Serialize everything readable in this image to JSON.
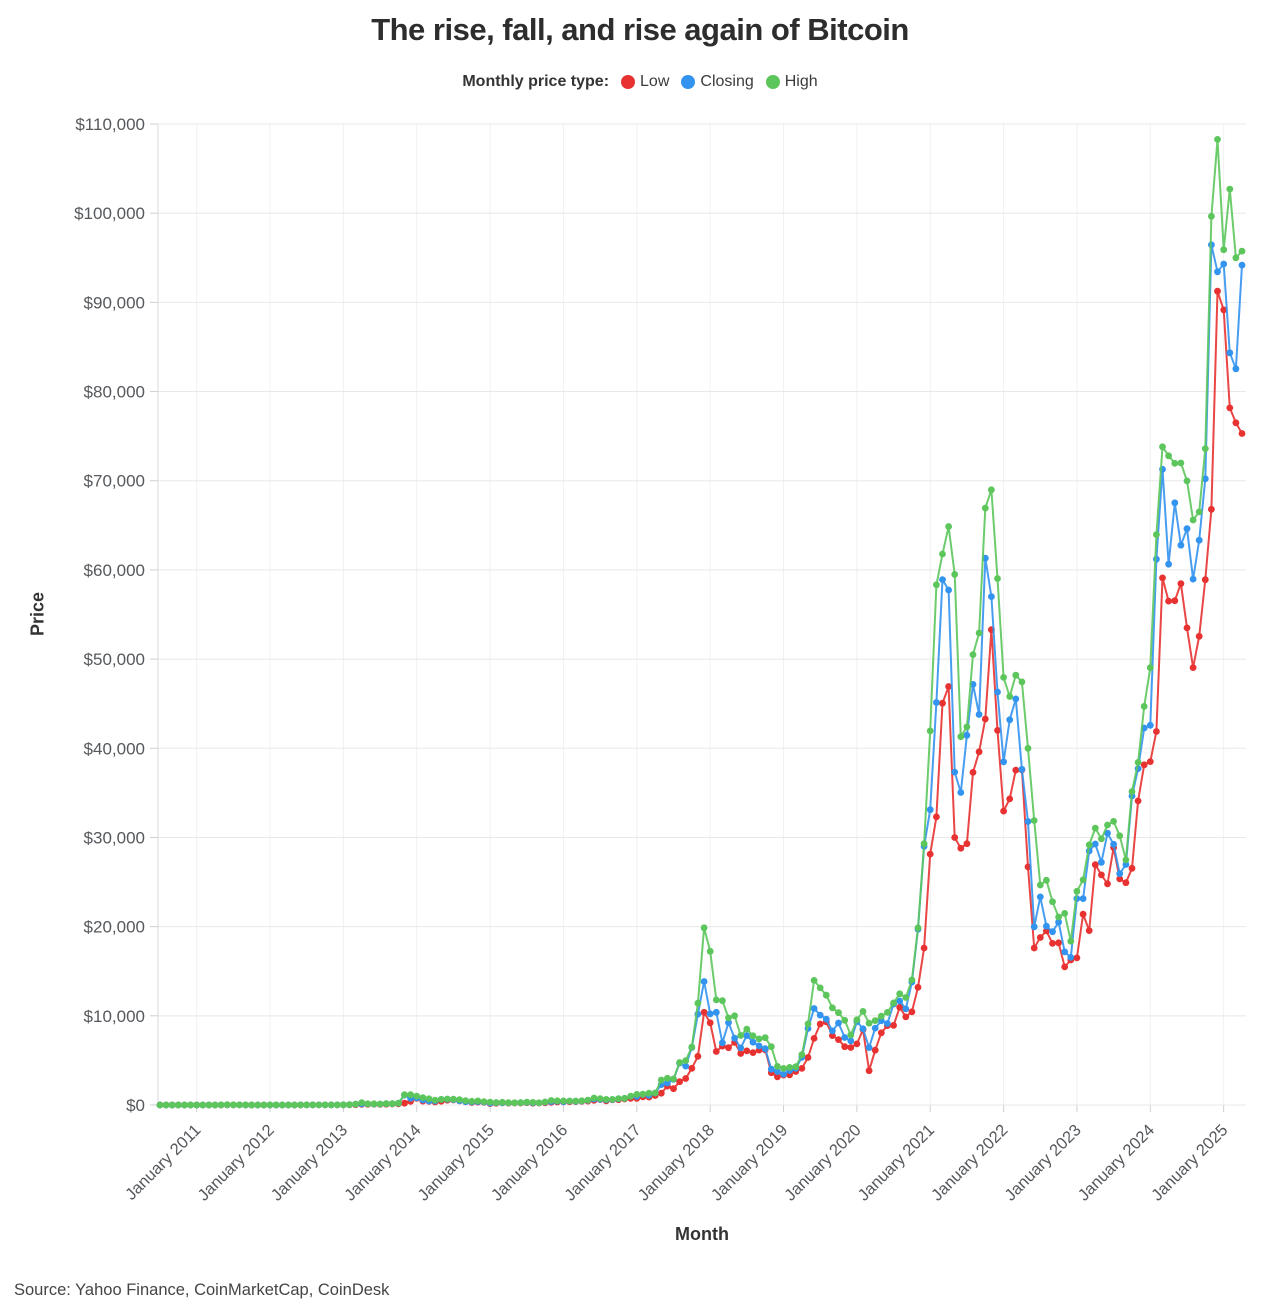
{
  "title": "The rise, fall, and rise again of Bitcoin",
  "legend": {
    "label": "Monthly price type:",
    "items": [
      {
        "name": "Low",
        "color": "#e73231"
      },
      {
        "name": "Closing",
        "color": "#3394ef"
      },
      {
        "name": "High",
        "color": "#5cc65c"
      }
    ]
  },
  "source": "Source: Yahoo Finance, CoinMarketCap, CoinDesk",
  "chart_data": {
    "type": "line",
    "title": "The rise, fall, and rise again of Bitcoin",
    "xlabel": "Month",
    "ylabel": "Price",
    "x_start": "2010-07",
    "x_end": "2025-04",
    "x_tick_month_offset": 6,
    "x_tick_labels": [
      "January 2011",
      "January 2012",
      "January 2013",
      "January 2014",
      "January 2015",
      "January 2016",
      "January 2017",
      "January 2018",
      "January 2019",
      "January 2020",
      "January 2021",
      "January 2022",
      "January 2023",
      "January 2024",
      "January 2025"
    ],
    "y_ticks": [
      "$0",
      "$10,000",
      "$20,000",
      "$30,000",
      "$40,000",
      "$50,000",
      "$60,000",
      "$70,000",
      "$80,000",
      "$90,000",
      "$100,000",
      "$110,000"
    ],
    "ylim": [
      0,
      110000
    ],
    "grid": true,
    "legend_position": "top",
    "series": [
      {
        "name": "Low",
        "color": "#e73231",
        "values": [
          0.05,
          0.05,
          0.06,
          0.06,
          0.14,
          0.21,
          0.29,
          0.45,
          0.7,
          0.75,
          3.4,
          9,
          12.8,
          7.6,
          4.8,
          2.3,
          1.9,
          3,
          4,
          4.2,
          4.5,
          4.7,
          4.9,
          5.2,
          6.5,
          7.5,
          9.8,
          10.2,
          10.3,
          12.4,
          13.2,
          20,
          33,
          68,
          79,
          88,
          65,
          92,
          114,
          123,
          198,
          420,
          735,
          440,
          420,
          340,
          421,
          538,
          565,
          455,
          365,
          275,
          320,
          304,
          152,
          205,
          236,
          210,
          228,
          219,
          255,
          198,
          223,
          237,
          290,
          333,
          350,
          366,
          385,
          414,
          438,
          520,
          605,
          465,
          568,
          598,
          675,
          740,
          752,
          920,
          891,
          1065,
          1319,
          2123,
          1830,
          2617,
          2972,
          4110,
          5459,
          10400,
          9222,
          6000,
          6600,
          6425,
          7032,
          5780,
          6070,
          5880,
          6160,
          6190,
          3617,
          3158,
          3350,
          3373,
          3760,
          4100,
          5330,
          7470,
          9080,
          9320,
          7780,
          7330,
          6540,
          6450,
          6850,
          8450,
          3850,
          6150,
          8100,
          8900,
          8920,
          10950,
          9880,
          10450,
          13200,
          17600,
          28130,
          32300,
          45050,
          46930,
          30000,
          28800,
          29300,
          37300,
          39600,
          43283,
          53300,
          42000,
          32950,
          34322,
          37555,
          37585,
          26700,
          17600,
          18780,
          19520,
          18125,
          18190,
          15480,
          16260,
          16490,
          21400,
          19550,
          26940,
          25800,
          24800,
          28860,
          25350,
          24930,
          26540,
          34100,
          38150,
          38500,
          41880,
          59100,
          56500,
          56550,
          58470,
          53500,
          49050,
          52550,
          58900,
          66800,
          91250,
          89160,
          78170,
          76500,
          75300
        ]
      },
      {
        "name": "Closing",
        "color": "#3394ef",
        "values": [
          0.06,
          0.06,
          0.06,
          0.19,
          0.21,
          0.3,
          0.45,
          0.86,
          0.79,
          3.5,
          8.7,
          16.1,
          13.4,
          8.2,
          5,
          3.2,
          3,
          4.25,
          5.5,
          4.9,
          4.9,
          5,
          5.2,
          6.7,
          9.4,
          10,
          12.4,
          11.2,
          12.5,
          13.5,
          20.4,
          33.4,
          93,
          139,
          128,
          97,
          106,
          141,
          141,
          204,
          1113,
          754,
          806,
          565,
          454,
          446,
          628,
          635,
          589,
          481,
          375,
          338,
          378,
          320,
          218,
          254,
          244,
          236,
          230,
          263,
          284,
          230,
          236,
          314,
          377,
          430,
          369,
          437,
          416,
          449,
          531,
          673,
          624,
          576,
          610,
          700,
          745,
          964,
          970,
          1180,
          1071,
          1347,
          2286,
          2468,
          2875,
          4703,
          4360,
          6451,
          10198,
          13850,
          10221,
          10397,
          6973,
          9240,
          7494,
          6404,
          7780,
          7037,
          6625,
          6317,
          4017,
          3742,
          3457,
          3854,
          4105,
          5350,
          8574,
          10817,
          10085,
          9630,
          8310,
          9199,
          7569,
          7193,
          9350,
          8543,
          6438,
          8620,
          9454,
          9137,
          11323,
          11657,
          10776,
          13780,
          19700,
          29001,
          33114,
          45137,
          58918,
          57750,
          37332,
          35040,
          41460,
          47166,
          43790,
          61318,
          57005,
          46306,
          38483,
          43193,
          45538,
          37644,
          31792,
          19985,
          23336,
          20049,
          19431,
          20495,
          17168,
          16547,
          23139,
          23147,
          28478,
          29268,
          27219,
          30477,
          29230,
          25940,
          26970,
          34650,
          37720,
          42270,
          42580,
          61200,
          71280,
          60640,
          67530,
          62770,
          64620,
          58970,
          63330,
          70220,
          96450,
          93430,
          94300,
          84350,
          82550,
          94180
        ]
      },
      {
        "name": "High",
        "color": "#5cc65c",
        "values": [
          0.1,
          0.09,
          0.07,
          0.2,
          0.5,
          0.4,
          0.5,
          1.1,
          0.95,
          3.6,
          8.9,
          31.9,
          17.4,
          13.5,
          8.9,
          5.1,
          3.3,
          4.3,
          7.2,
          6.2,
          5.4,
          5.6,
          5.3,
          6.9,
          9.5,
          16.4,
          12.6,
          12.8,
          12.6,
          13.8,
          20.6,
          34.3,
          95,
          266,
          140,
          129,
          110,
          147,
          147,
          217,
          1156,
          1156,
          995,
          830,
          700,
          548,
          630,
          676,
          655,
          600,
          485,
          412,
          460,
          384,
          321,
          265,
          300,
          262,
          248,
          268,
          318,
          288,
          250,
          334,
          504,
          469,
          463,
          448,
          444,
          470,
          554,
          781,
          706,
          628,
          630,
          720,
          755,
          982,
          1191,
          1210,
          1326,
          1348,
          2798,
          2999,
          2930,
          4765,
          4980,
          6498,
          11417,
          19870,
          17234,
          11786,
          11700,
          9768,
          9999,
          7790,
          8509,
          7760,
          7413,
          7548,
          6542,
          4327,
          4109,
          4220,
          4290,
          5640,
          9090,
          13970,
          13130,
          12316,
          10898,
          10350,
          9500,
          7850,
          9550,
          10500,
          9170,
          9460,
          9960,
          10380,
          11450,
          12470,
          12050,
          14028,
          19863,
          29300,
          41950,
          58330,
          61780,
          64863,
          59500,
          41300,
          42400,
          50500,
          52920,
          66930,
          68979,
          59041,
          47950,
          45800,
          48190,
          47444,
          40000,
          31900,
          24668,
          25200,
          22799,
          21085,
          21480,
          18370,
          23960,
          25250,
          29160,
          31050,
          29850,
          31400,
          31800,
          30180,
          27480,
          35150,
          38420,
          44700,
          49040,
          63960,
          73800,
          72800,
          71950,
          71990,
          69980,
          65600,
          66500,
          73600,
          99650,
          108270,
          95900,
          102700,
          95000,
          95750
        ]
      }
    ]
  }
}
